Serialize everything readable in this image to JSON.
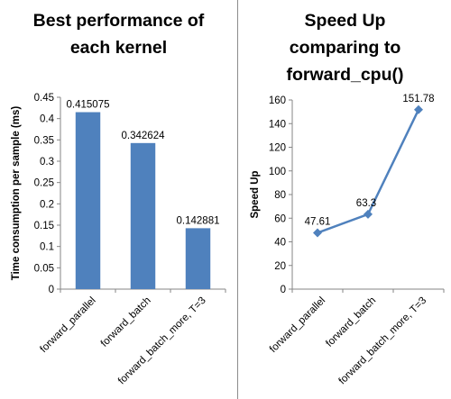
{
  "chart_data": [
    {
      "type": "bar",
      "title_lines": [
        "Best performance of",
        "each kernel"
      ],
      "ylabel": "Time consumption per sample (ms)",
      "xlabel": "",
      "categories": [
        "forward_parallel",
        "forward_batch",
        "forward_batch_more, T=3"
      ],
      "values": [
        0.415075,
        0.342624,
        0.142881
      ],
      "data_labels": [
        "0.415075",
        "0.342624",
        "0.142881"
      ],
      "ylim": [
        0,
        0.45
      ],
      "yticks": [
        "0",
        "0.05",
        "0.1",
        "0.15",
        "0.2",
        "0.25",
        "0.3",
        "0.35",
        "0.4",
        "0.45"
      ],
      "ytick_values": [
        0,
        0.05,
        0.1,
        0.15,
        0.2,
        0.25,
        0.3,
        0.35,
        0.4,
        0.45
      ],
      "grid": false,
      "colors": {
        "bar": "#4f81bd"
      }
    },
    {
      "type": "line",
      "title_lines": [
        "Speed Up",
        "comparing to",
        "forward_cpu()"
      ],
      "ylabel": "Speed Up",
      "xlabel": "",
      "categories": [
        "forward_parallel",
        "forward_batch",
        "forward_batch_more, T=3"
      ],
      "values": [
        47.61,
        63.3,
        151.78
      ],
      "data_labels": [
        "47.61",
        "63.3",
        "151.78"
      ],
      "ylim": [
        0,
        160
      ],
      "yticks": [
        "0",
        "20",
        "40",
        "60",
        "80",
        "100",
        "120",
        "140",
        "160"
      ],
      "ytick_values": [
        0,
        20,
        40,
        60,
        80,
        100,
        120,
        140,
        160
      ],
      "grid": false,
      "marker": "diamond",
      "colors": {
        "line": "#4f81bd"
      }
    }
  ]
}
